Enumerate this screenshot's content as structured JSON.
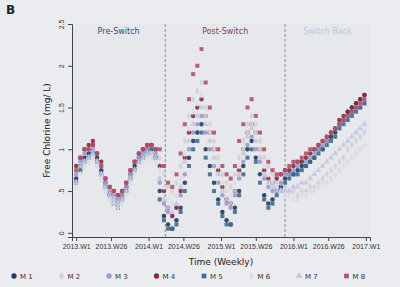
{
  "chart_data": {
    "type": "scatter",
    "title": "B",
    "x_label": "Time (Weekly)",
    "y_label": "Free Chlorine (mg/ L)",
    "x": [
      0,
      3,
      6,
      9,
      12,
      15,
      18,
      21,
      24,
      27,
      30,
      33,
      36,
      39,
      42,
      45,
      48,
      51,
      54,
      57,
      60,
      63,
      66,
      69,
      72,
      75,
      78,
      81,
      84,
      87,
      90,
      93,
      96,
      99,
      102,
      105,
      108,
      111,
      114,
      117,
      120,
      123,
      126,
      129,
      132,
      135,
      138,
      141,
      144,
      147,
      150,
      153,
      156,
      159,
      162,
      165,
      168,
      171,
      174,
      177,
      180,
      183,
      186,
      189,
      192,
      195,
      198,
      201,
      204,
      207
    ],
    "xlim": [
      -3,
      211
    ],
    "xticks": [
      {
        "value": 0,
        "label": "2013.W1"
      },
      {
        "value": 25,
        "label": "2013.W26"
      },
      {
        "value": 52,
        "label": "2014.W1"
      },
      {
        "value": 77,
        "label": "2014.W26"
      },
      {
        "value": 104,
        "label": "2015.W1"
      },
      {
        "value": 129,
        "label": "2015.W26"
      },
      {
        "value": 156,
        "label": "2016.W1"
      },
      {
        "value": 181,
        "label": "2016.W26"
      },
      {
        "value": 208,
        "label": "2017.W1"
      }
    ],
    "ylim": [
      -0.05,
      2.5
    ],
    "yticks": [
      0,
      {
        "value": 0.5,
        "label": ".5"
      },
      1,
      1.5,
      2,
      2.5
    ],
    "grid": false,
    "legend": "bottom",
    "switch_lines": [
      64,
      150
    ],
    "phase_labels": [
      "Pre-Switch",
      "Post-Switch",
      "Switch Back"
    ],
    "series": [
      {
        "name": "M 1",
        "color": "#1f3b63",
        "marker": "circle",
        "values": [
          0.65,
          0.8,
          0.9,
          0.95,
          1.05,
          0.9,
          0.75,
          0.6,
          0.45,
          0.4,
          0.35,
          0.45,
          0.55,
          0.7,
          0.8,
          0.9,
          1.0,
          1.0,
          1.05,
          0.9,
          0.5,
          0.2,
          0.1,
          0.05,
          0.15,
          0.3,
          0.6,
          0.9,
          1.1,
          1.2,
          1.3,
          1.0,
          0.8,
          0.6,
          0.4,
          0.25,
          0.15,
          0.1,
          0.3,
          0.5,
          0.8,
          1.0,
          1.1,
          0.9,
          0.7,
          0.45,
          0.35,
          0.4,
          0.5,
          0.55,
          0.65,
          0.7,
          0.7,
          0.75,
          0.8,
          0.8,
          0.85,
          0.9,
          1.0,
          1.0,
          1.1,
          1.15,
          1.2,
          1.3,
          1.35,
          1.45,
          1.5,
          1.55,
          1.6,
          1.65
        ]
      },
      {
        "name": "M 2",
        "color": "#cfd1d4",
        "marker": "diamond",
        "values": [
          0.6,
          0.75,
          0.85,
          0.9,
          0.95,
          0.85,
          0.7,
          0.55,
          0.45,
          0.4,
          0.35,
          0.4,
          0.5,
          0.65,
          0.75,
          0.85,
          0.9,
          0.95,
          0.95,
          0.9,
          0.9,
          0.7,
          0.55,
          0.5,
          0.6,
          0.8,
          1.1,
          1.4,
          1.6,
          1.7,
          1.8,
          1.5,
          1.3,
          1.1,
          0.9,
          0.7,
          0.6,
          0.55,
          0.7,
          0.9,
          1.1,
          1.3,
          1.4,
          1.3,
          1.1,
          0.9,
          0.8,
          0.7,
          0.6,
          0.6,
          0.55,
          0.5,
          0.5,
          0.45,
          0.5,
          0.5,
          0.55,
          0.55,
          0.6,
          0.65,
          0.7,
          0.75,
          0.8,
          0.85,
          0.9,
          1.0,
          1.05,
          1.1,
          1.15,
          1.2
        ]
      },
      {
        "name": "M 3",
        "color": "#9a9bd0",
        "marker": "circle",
        "values": [
          0.7,
          0.85,
          0.95,
          1.0,
          1.0,
          0.95,
          0.8,
          0.6,
          0.5,
          0.45,
          0.4,
          0.45,
          0.55,
          0.7,
          0.85,
          0.9,
          0.95,
          1.0,
          1.0,
          0.95,
          0.6,
          0.35,
          0.25,
          0.2,
          0.3,
          0.45,
          0.7,
          1.0,
          1.2,
          1.3,
          1.4,
          1.2,
          1.0,
          0.8,
          0.6,
          0.45,
          0.35,
          0.3,
          0.45,
          0.65,
          0.85,
          1.05,
          1.15,
          1.0,
          0.85,
          0.65,
          0.55,
          0.5,
          0.55,
          0.6,
          0.7,
          0.7,
          0.75,
          0.8,
          0.85,
          0.85,
          0.9,
          0.95,
          1.0,
          1.05,
          1.1,
          1.2,
          1.25,
          1.3,
          1.35,
          1.4,
          1.45,
          1.5,
          1.5,
          1.55
        ]
      },
      {
        "name": "M 4",
        "color": "#8c2a3c",
        "marker": "circle",
        "values": [
          0.8,
          0.9,
          1.0,
          1.05,
          1.1,
          0.95,
          0.85,
          0.65,
          0.55,
          0.5,
          0.45,
          0.5,
          0.6,
          0.75,
          0.85,
          0.95,
          1.0,
          1.05,
          1.05,
          1.0,
          0.8,
          0.5,
          0.3,
          0.2,
          0.3,
          0.5,
          0.9,
          1.2,
          1.4,
          1.5,
          1.6,
          1.4,
          1.2,
          1.0,
          0.75,
          0.55,
          0.4,
          0.35,
          0.5,
          0.75,
          1.0,
          1.2,
          1.3,
          1.2,
          1.0,
          0.75,
          0.65,
          0.6,
          0.65,
          0.7,
          0.75,
          0.75,
          0.8,
          0.85,
          0.85,
          0.9,
          0.95,
          1.0,
          1.05,
          1.1,
          1.15,
          1.2,
          1.25,
          1.35,
          1.4,
          1.45,
          1.5,
          1.55,
          1.6,
          1.65
        ]
      },
      {
        "name": "M 5",
        "color": "#3f6b8e",
        "marker": "square",
        "values": [
          0.6,
          0.75,
          0.85,
          0.9,
          0.95,
          0.85,
          0.7,
          0.55,
          0.45,
          0.35,
          0.3,
          0.4,
          0.5,
          0.65,
          0.75,
          0.85,
          0.9,
          0.95,
          1.0,
          0.9,
          0.4,
          0.15,
          0.05,
          0.05,
          0.1,
          0.25,
          0.5,
          0.8,
          1.0,
          1.1,
          1.2,
          0.9,
          0.7,
          0.5,
          0.35,
          0.2,
          0.1,
          0.1,
          0.25,
          0.45,
          0.7,
          0.9,
          1.0,
          0.85,
          0.6,
          0.4,
          0.3,
          0.35,
          0.45,
          0.5,
          0.6,
          0.65,
          0.7,
          0.7,
          0.75,
          0.8,
          0.85,
          0.9,
          0.95,
          1.0,
          1.05,
          1.1,
          1.15,
          1.25,
          1.3,
          1.35,
          1.4,
          1.45,
          1.5,
          1.55
        ]
      },
      {
        "name": "M 6",
        "color": "#dcdde0",
        "marker": "diamond",
        "values": [
          0.55,
          0.7,
          0.8,
          0.85,
          0.9,
          0.8,
          0.65,
          0.5,
          0.4,
          0.35,
          0.3,
          0.35,
          0.45,
          0.6,
          0.7,
          0.8,
          0.85,
          0.9,
          0.9,
          0.85,
          0.75,
          0.55,
          0.4,
          0.35,
          0.45,
          0.65,
          0.95,
          1.25,
          1.45,
          1.55,
          1.65,
          1.4,
          1.2,
          1.0,
          0.8,
          0.6,
          0.5,
          0.45,
          0.6,
          0.8,
          1.0,
          1.2,
          1.3,
          1.2,
          1.0,
          0.8,
          0.7,
          0.6,
          0.55,
          0.5,
          0.45,
          0.45,
          0.4,
          0.4,
          0.45,
          0.45,
          0.5,
          0.5,
          0.55,
          0.6,
          0.6,
          0.65,
          0.7,
          0.75,
          0.8,
          0.85,
          0.9,
          0.95,
          1.0,
          1.05
        ]
      },
      {
        "name": "M 7",
        "color": "#c4c7e2",
        "marker": "triangle",
        "values": [
          0.6,
          0.8,
          0.85,
          0.9,
          0.95,
          0.85,
          0.7,
          0.55,
          0.45,
          0.4,
          0.35,
          0.4,
          0.5,
          0.65,
          0.75,
          0.85,
          0.9,
          0.95,
          0.95,
          0.9,
          0.65,
          0.4,
          0.3,
          0.25,
          0.35,
          0.55,
          0.85,
          1.1,
          1.3,
          1.4,
          1.5,
          1.3,
          1.1,
          0.9,
          0.7,
          0.5,
          0.4,
          0.35,
          0.5,
          0.7,
          0.95,
          1.15,
          1.25,
          1.1,
          0.9,
          0.7,
          0.6,
          0.55,
          0.5,
          0.5,
          0.5,
          0.5,
          0.55,
          0.55,
          0.6,
          0.6,
          0.65,
          0.7,
          0.75,
          0.8,
          0.85,
          0.9,
          0.95,
          1.0,
          1.05,
          1.1,
          1.15,
          1.2,
          1.25,
          1.3
        ]
      },
      {
        "name": "M 8",
        "color": "#b3506b",
        "marker": "square",
        "values": [
          0.75,
          0.9,
          1.0,
          1.0,
          1.05,
          0.95,
          0.8,
          0.65,
          0.55,
          0.5,
          0.45,
          0.5,
          0.6,
          0.75,
          0.85,
          0.95,
          1.0,
          1.05,
          1.05,
          1.0,
          1.0,
          0.8,
          0.6,
          0.55,
          0.7,
          0.95,
          1.3,
          1.6,
          1.9,
          2.0,
          2.2,
          1.8,
          1.5,
          1.2,
          1.0,
          0.8,
          0.7,
          0.65,
          0.8,
          1.1,
          1.3,
          1.5,
          1.6,
          1.4,
          1.2,
          1.0,
          0.85,
          0.75,
          0.7,
          0.7,
          0.75,
          0.8,
          0.85,
          0.85,
          0.9,
          0.95,
          1.0,
          1.0,
          1.05,
          1.1,
          1.15,
          1.2,
          1.25,
          1.3,
          1.35,
          1.4,
          1.45,
          1.5,
          1.55,
          1.6
        ]
      }
    ]
  }
}
